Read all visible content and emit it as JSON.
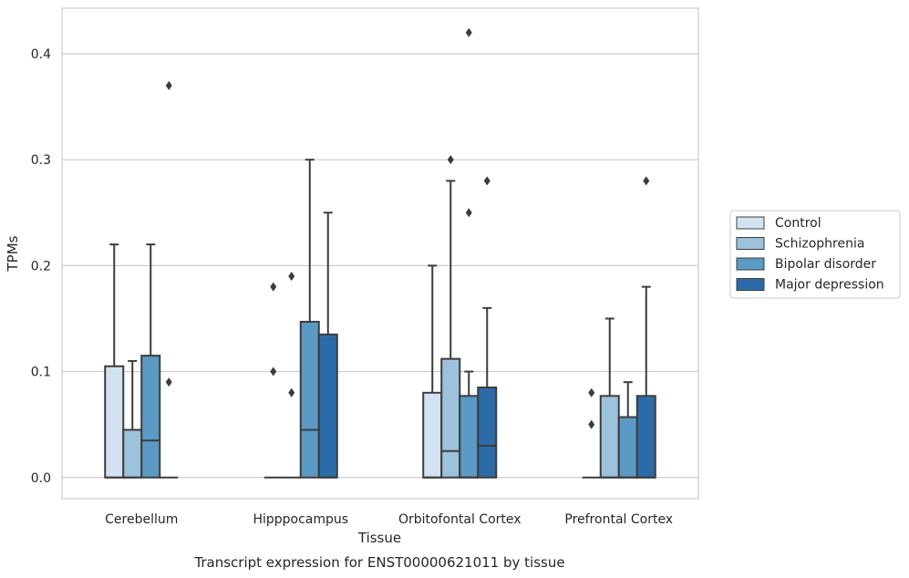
{
  "chart_data": {
    "type": "box",
    "title": "",
    "caption": "Transcript expression for ENST00000621011 by tissue",
    "xlabel": "Tissue",
    "ylabel": "TPMs",
    "ylim": [
      -0.02,
      0.443
    ],
    "yticks": [
      0.0,
      0.1,
      0.2,
      0.3,
      0.4
    ],
    "ytick_labels": [
      "0.0",
      "0.1",
      "0.2",
      "0.3",
      "0.4"
    ],
    "grid": "horizontal",
    "legend_position": "right",
    "categories": [
      "Cerebellum",
      "Hipppocampus",
      "Orbitofontal Cortex",
      "Prefrontal Cortex"
    ],
    "series": [
      {
        "name": "Control",
        "color": "#d3e2f0",
        "boxes": [
          {
            "q1": 0.0,
            "median": 0.0,
            "q3": 0.105,
            "whisker_low": 0.0,
            "whisker_high": 0.22,
            "outliers": []
          },
          {
            "q1": 0.0,
            "median": 0.0,
            "q3": 0.0,
            "whisker_low": 0.0,
            "whisker_high": 0.0,
            "outliers": [
              0.1,
              0.18
            ]
          },
          {
            "q1": 0.0,
            "median": 0.0,
            "q3": 0.08,
            "whisker_low": 0.0,
            "whisker_high": 0.2,
            "outliers": []
          },
          {
            "q1": 0.0,
            "median": 0.0,
            "q3": 0.0,
            "whisker_low": 0.0,
            "whisker_high": 0.0,
            "outliers": [
              0.05,
              0.08
            ]
          }
        ]
      },
      {
        "name": "Schizophrenia",
        "color": "#9cc2dc",
        "boxes": [
          {
            "q1": 0.0,
            "median": 0.0,
            "q3": 0.045,
            "whisker_low": 0.0,
            "whisker_high": 0.11,
            "outliers": []
          },
          {
            "q1": 0.0,
            "median": 0.0,
            "q3": 0.0,
            "whisker_low": 0.0,
            "whisker_high": 0.0,
            "outliers": [
              0.08,
              0.19
            ]
          },
          {
            "q1": 0.0,
            "median": 0.025,
            "q3": 0.112,
            "whisker_low": 0.0,
            "whisker_high": 0.28,
            "outliers": [
              0.3
            ]
          },
          {
            "q1": 0.0,
            "median": 0.0,
            "q3": 0.077,
            "whisker_low": 0.0,
            "whisker_high": 0.15,
            "outliers": []
          }
        ]
      },
      {
        "name": "Bipolar disorder",
        "color": "#5a9ac5",
        "boxes": [
          {
            "q1": 0.0,
            "median": 0.035,
            "q3": 0.115,
            "whisker_low": 0.0,
            "whisker_high": 0.22,
            "outliers": []
          },
          {
            "q1": 0.0,
            "median": 0.045,
            "q3": 0.147,
            "whisker_low": 0.0,
            "whisker_high": 0.3,
            "outliers": []
          },
          {
            "q1": 0.0,
            "median": 0.0,
            "q3": 0.077,
            "whisker_low": 0.0,
            "whisker_high": 0.1,
            "outliers": [
              0.25,
              0.42
            ]
          },
          {
            "q1": 0.0,
            "median": 0.0,
            "q3": 0.057,
            "whisker_low": 0.0,
            "whisker_high": 0.09,
            "outliers": []
          }
        ]
      },
      {
        "name": "Major depression",
        "color": "#2b6ca8",
        "boxes": [
          {
            "q1": 0.0,
            "median": 0.0,
            "q3": 0.0,
            "whisker_low": 0.0,
            "whisker_high": 0.0,
            "outliers": [
              0.09,
              0.37
            ]
          },
          {
            "q1": 0.0,
            "median": 0.0,
            "q3": 0.135,
            "whisker_low": 0.0,
            "whisker_high": 0.25,
            "outliers": []
          },
          {
            "q1": 0.0,
            "median": 0.03,
            "q3": 0.085,
            "whisker_low": 0.0,
            "whisker_high": 0.16,
            "outliers": [
              0.28
            ]
          },
          {
            "q1": 0.0,
            "median": 0.0,
            "q3": 0.077,
            "whisker_low": 0.0,
            "whisker_high": 0.18,
            "outliers": [
              0.28
            ]
          }
        ]
      }
    ],
    "colors": {
      "grid": "#cccccc",
      "frame": "#cccccc",
      "edge": "#3c3c3c",
      "text": "#262626"
    }
  }
}
